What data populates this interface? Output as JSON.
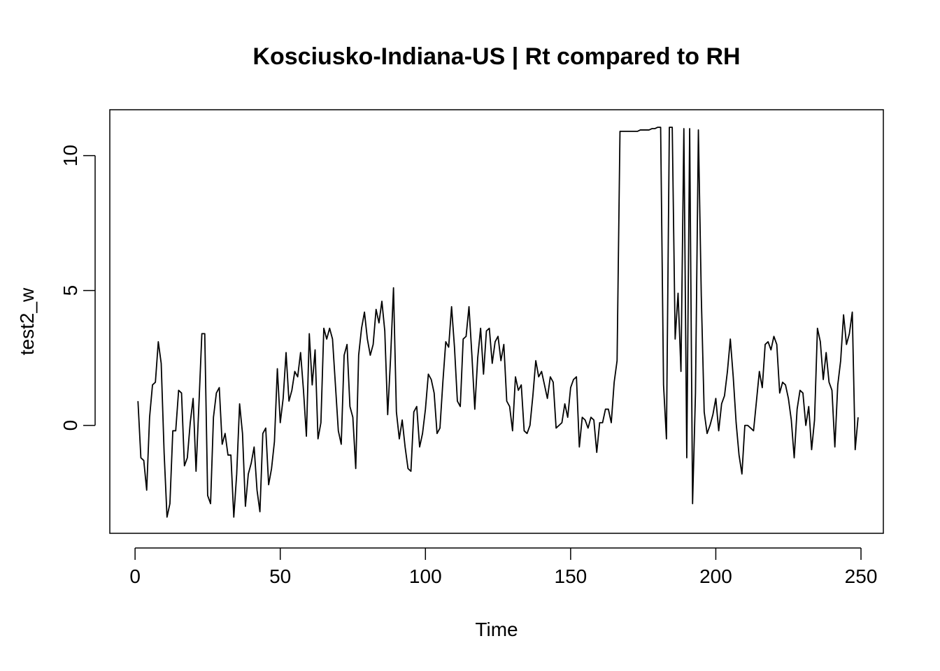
{
  "chart_data": {
    "type": "line",
    "title": "Kosciusko-Indiana-US | Rt compared to RH",
    "xlabel": "Time",
    "ylabel": "test2_w",
    "xlim": [
      -8.7,
      257.7
    ],
    "ylim": [
      -4.0,
      11.7
    ],
    "xticks": [
      0,
      50,
      100,
      150,
      200,
      250
    ],
    "yticks": [
      0,
      5,
      10
    ],
    "xtick_labels": [
      "0",
      "50",
      "100",
      "150",
      "200",
      "250"
    ],
    "ytick_labels": [
      "0",
      "5",
      "10"
    ],
    "grid": false,
    "legend": "none",
    "line_color": "#000000",
    "series": [
      {
        "values": [
          0.9,
          -1.2,
          -1.3,
          -2.4,
          0.3,
          1.5,
          1.6,
          3.1,
          2.3,
          -1.0,
          -3.4,
          -2.9,
          -0.2,
          -0.2,
          1.3,
          1.2,
          -1.5,
          -1.2,
          0.1,
          1.0,
          -1.7,
          0.8,
          3.4,
          3.4,
          -2.6,
          -2.9,
          0.3,
          1.2,
          1.4,
          -0.7,
          -0.3,
          -1.1,
          -1.1,
          -3.4,
          -1.8,
          0.8,
          -0.3,
          -3.0,
          -1.8,
          -1.4,
          -0.8,
          -2.4,
          -3.2,
          -0.3,
          -0.1,
          -2.2,
          -1.6,
          -0.6,
          2.1,
          0.1,
          1.0,
          2.7,
          0.9,
          1.3,
          2.0,
          1.8,
          2.7,
          1.3,
          -0.4,
          3.4,
          1.5,
          2.8,
          -0.5,
          0.1,
          3.6,
          3.2,
          3.6,
          3.2,
          1.5,
          -0.2,
          -0.7,
          2.6,
          3.0,
          0.7,
          0.3,
          -1.6,
          2.6,
          3.6,
          4.2,
          3.2,
          2.6,
          3.0,
          4.3,
          3.8,
          4.6,
          3.5,
          0.4,
          2.5,
          5.1,
          0.5,
          -0.5,
          0.2,
          -0.8,
          -1.6,
          -1.7,
          0.5,
          0.7,
          -0.8,
          -0.3,
          0.6,
          1.9,
          1.7,
          1.2,
          -0.3,
          -0.1,
          1.6,
          3.1,
          2.9,
          4.4,
          2.9,
          0.9,
          0.7,
          3.2,
          3.3,
          4.4,
          2.6,
          0.6,
          2.5,
          3.6,
          1.9,
          3.5,
          3.6,
          2.3,
          3.1,
          3.3,
          2.4,
          3.0,
          0.9,
          0.7,
          -0.2,
          1.8,
          1.3,
          1.5,
          -0.2,
          -0.3,
          0.0,
          1.1,
          2.4,
          1.8,
          2.0,
          1.5,
          1.0,
          1.8,
          1.6,
          -0.1,
          0.0,
          0.1,
          0.8,
          0.3,
          1.4,
          1.7,
          1.8,
          -0.8,
          0.3,
          0.2,
          -0.1,
          0.3,
          0.2,
          -1.0,
          0.1,
          0.1,
          0.6,
          0.6,
          0.1,
          1.6,
          2.4,
          10.9,
          10.9,
          10.9,
          10.9,
          10.9,
          10.9,
          10.9,
          10.95,
          10.95,
          10.95,
          10.95,
          11.0,
          11.0,
          11.05,
          11.05,
          1.5,
          -0.5,
          11.05,
          11.05,
          3.2,
          4.9,
          2.0,
          11.0,
          -1.2,
          11.0,
          -2.9,
          1.2,
          10.95,
          4.8,
          0.5,
          -0.3,
          0.0,
          0.4,
          1.0,
          -0.2,
          0.8,
          1.1,
          2.0,
          3.2,
          1.8,
          0.1,
          -1.1,
          -1.8,
          0.0,
          0.0,
          -0.1,
          -0.2,
          0.9,
          2.0,
          1.4,
          3.0,
          3.1,
          2.8,
          3.3,
          3.0,
          1.2,
          1.6,
          1.5,
          1.0,
          0.2,
          -1.2,
          0.6,
          1.3,
          1.2,
          0.0,
          0.7,
          -0.9,
          0.2,
          3.6,
          3.1,
          1.7,
          2.7,
          1.6,
          1.3,
          -0.8,
          1.5,
          2.4,
          4.1,
          3.0,
          3.4,
          4.2,
          -0.9,
          0.3
        ]
      }
    ]
  }
}
